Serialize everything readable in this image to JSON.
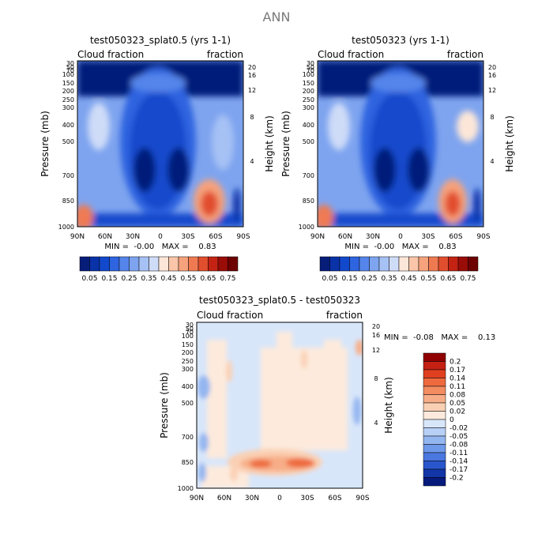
{
  "suptitle": "ANN",
  "chart_data": [
    {
      "type": "heatmap",
      "title": "test050323_splat0.5 (yrs 1-1)",
      "left_label": "Cloud fraction",
      "right_label": "fraction",
      "ylabel": "Pressure (mb)",
      "ylabel_right": "Height (km)",
      "x_ticks": [
        "90N",
        "60N",
        "30N",
        "0",
        "30S",
        "60S",
        "90S"
      ],
      "y_ticks": [
        "30",
        "50",
        "70",
        "100",
        "150",
        "200",
        "250",
        "300",
        "400",
        "500",
        "700",
        "850",
        "1000"
      ],
      "height_ticks": [
        "20",
        "16",
        "12",
        "8",
        "4"
      ],
      "min_max_text": "MIN =  -0.00   MAX =    0.83",
      "colorbar_labels": [
        "0.05",
        "0.15",
        "0.25",
        "0.35",
        "0.45",
        "0.55",
        "0.65",
        "0.75"
      ],
      "colorbar_colors": [
        "#061d7a",
        "#0a32a8",
        "#1248cc",
        "#2e64e0",
        "#5585ea",
        "#7ea4ef",
        "#a6c1f4",
        "#cfdcf8",
        "#fce6d8",
        "#fac5a8",
        "#f6a27c",
        "#ef7a52",
        "#e14e2e",
        "#c42314",
        "#9a0c08",
        "#6d0000"
      ]
    },
    {
      "type": "heatmap",
      "title": "test050323 (yrs 1-1)",
      "left_label": "Cloud fraction",
      "right_label": "fraction",
      "ylabel": "Pressure (mb)",
      "ylabel_right": "Height (km)",
      "x_ticks": [
        "90N",
        "60N",
        "30N",
        "0",
        "30S",
        "60S",
        "90S"
      ],
      "y_ticks": [
        "30",
        "50",
        "70",
        "100",
        "150",
        "200",
        "250",
        "300",
        "400",
        "500",
        "700",
        "850",
        "1000"
      ],
      "height_ticks": [
        "20",
        "16",
        "12",
        "8",
        "4"
      ],
      "min_max_text": "MIN =  -0.00   MAX =    0.83",
      "colorbar_labels": [
        "0.05",
        "0.15",
        "0.25",
        "0.35",
        "0.45",
        "0.55",
        "0.65",
        "0.75"
      ],
      "colorbar_colors": [
        "#061d7a",
        "#0a32a8",
        "#1248cc",
        "#2e64e0",
        "#5585ea",
        "#7ea4ef",
        "#a6c1f4",
        "#cfdcf8",
        "#fce6d8",
        "#fac5a8",
        "#f6a27c",
        "#ef7a52",
        "#e14e2e",
        "#c42314",
        "#9a0c08",
        "#6d0000"
      ]
    },
    {
      "type": "heatmap",
      "title": "test050323_splat0.5 - test050323",
      "left_label": "Cloud fraction",
      "right_label": "fraction",
      "ylabel": "Pressure (mb)",
      "ylabel_right": "Height (km)",
      "x_ticks": [
        "90N",
        "60N",
        "30N",
        "0",
        "30S",
        "60S",
        "90S"
      ],
      "y_ticks": [
        "30",
        "50",
        "70",
        "100",
        "150",
        "200",
        "250",
        "300",
        "400",
        "500",
        "700",
        "850",
        "1000"
      ],
      "height_ticks": [
        "20",
        "16",
        "12",
        "8",
        "4"
      ],
      "min_max_text": "MIN =  -0.08   MAX =    0.13",
      "colorbar_labels": [
        "0.2",
        "0.17",
        "0.14",
        "0.11",
        "0.08",
        "0.05",
        "0.02",
        "0",
        "-0.02",
        "-0.05",
        "-0.08",
        "-0.11",
        "-0.14",
        "-0.17",
        "-0.2"
      ],
      "colorbar_colors": [
        "#900000",
        "#c42014",
        "#e0401f",
        "#ee6a3e",
        "#f38c60",
        "#f7ae88",
        "#fad0b4",
        "#fdeadc",
        "#d8e6fa",
        "#b8d0f6",
        "#94b6f0",
        "#6e98ea",
        "#4a78e0",
        "#2a56cc",
        "#1236a8",
        "#061a7c"
      ]
    }
  ]
}
